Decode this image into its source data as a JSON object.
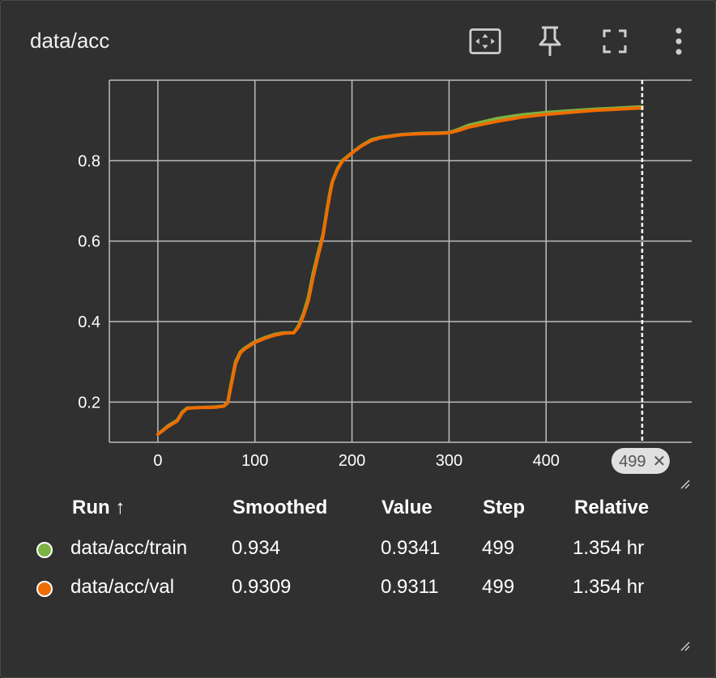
{
  "card": {
    "title": "data/acc",
    "icons": [
      "fit-domain-icon",
      "pin-icon",
      "fullscreen-icon",
      "more-vert-icon"
    ]
  },
  "chart_data": {
    "type": "line",
    "title": "data/acc",
    "xlabel": "",
    "ylabel": "",
    "xlim": [
      -50,
      550
    ],
    "ylim": [
      0.1,
      1.0
    ],
    "x_ticks": [
      0,
      100,
      200,
      300,
      400
    ],
    "y_ticks": [
      0.2,
      0.4,
      0.6,
      0.8
    ],
    "grid": true,
    "cursor_step": 499,
    "cursor_label": "499",
    "series": [
      {
        "name": "data/acc/train",
        "color": "#7cb342",
        "x": [
          0,
          10,
          20,
          25,
          30,
          40,
          60,
          68,
          72,
          75,
          80,
          85,
          90,
          100,
          110,
          120,
          130,
          140,
          145,
          150,
          155,
          160,
          165,
          170,
          175,
          178,
          180,
          185,
          190,
          200,
          210,
          220,
          230,
          250,
          270,
          290,
          300,
          310,
          320,
          350,
          375,
          400,
          425,
          450,
          475,
          499
        ],
        "values": [
          0.12,
          0.14,
          0.155,
          0.175,
          0.185,
          0.186,
          0.188,
          0.19,
          0.2,
          0.24,
          0.3,
          0.325,
          0.335,
          0.35,
          0.36,
          0.368,
          0.372,
          0.372,
          0.39,
          0.42,
          0.46,
          0.52,
          0.57,
          0.615,
          0.69,
          0.73,
          0.75,
          0.78,
          0.8,
          0.82,
          0.838,
          0.852,
          0.858,
          0.865,
          0.868,
          0.869,
          0.87,
          0.878,
          0.888,
          0.905,
          0.914,
          0.92,
          0.924,
          0.928,
          0.931,
          0.934
        ]
      },
      {
        "name": "data/acc/val",
        "color": "#ef6c00",
        "x": [
          0,
          10,
          20,
          25,
          30,
          40,
          60,
          68,
          72,
          75,
          80,
          85,
          90,
          100,
          110,
          120,
          130,
          140,
          145,
          150,
          155,
          160,
          165,
          170,
          175,
          178,
          180,
          185,
          190,
          200,
          210,
          220,
          230,
          250,
          270,
          290,
          300,
          310,
          320,
          350,
          375,
          400,
          425,
          450,
          475,
          499
        ],
        "values": [
          0.12,
          0.138,
          0.153,
          0.173,
          0.184,
          0.186,
          0.187,
          0.19,
          0.198,
          0.235,
          0.295,
          0.322,
          0.333,
          0.348,
          0.358,
          0.366,
          0.371,
          0.372,
          0.387,
          0.415,
          0.452,
          0.51,
          0.562,
          0.61,
          0.685,
          0.725,
          0.748,
          0.778,
          0.798,
          0.819,
          0.837,
          0.85,
          0.857,
          0.864,
          0.867,
          0.868,
          0.869,
          0.875,
          0.883,
          0.898,
          0.908,
          0.915,
          0.92,
          0.925,
          0.928,
          0.9309
        ]
      }
    ]
  },
  "table": {
    "headers": {
      "run": "Run ↑",
      "smoothed": "Smoothed",
      "value": "Value",
      "step": "Step",
      "relative": "Relative"
    },
    "rows": [
      {
        "color": "#7cb342",
        "run": "data/acc/train",
        "smoothed": "0.934",
        "value": "0.9341",
        "step": "499",
        "relative": "1.354 hr"
      },
      {
        "color": "#ef6c00",
        "run": "data/acc/val",
        "smoothed": "0.9309",
        "value": "0.9311",
        "step": "499",
        "relative": "1.354 hr"
      }
    ]
  }
}
